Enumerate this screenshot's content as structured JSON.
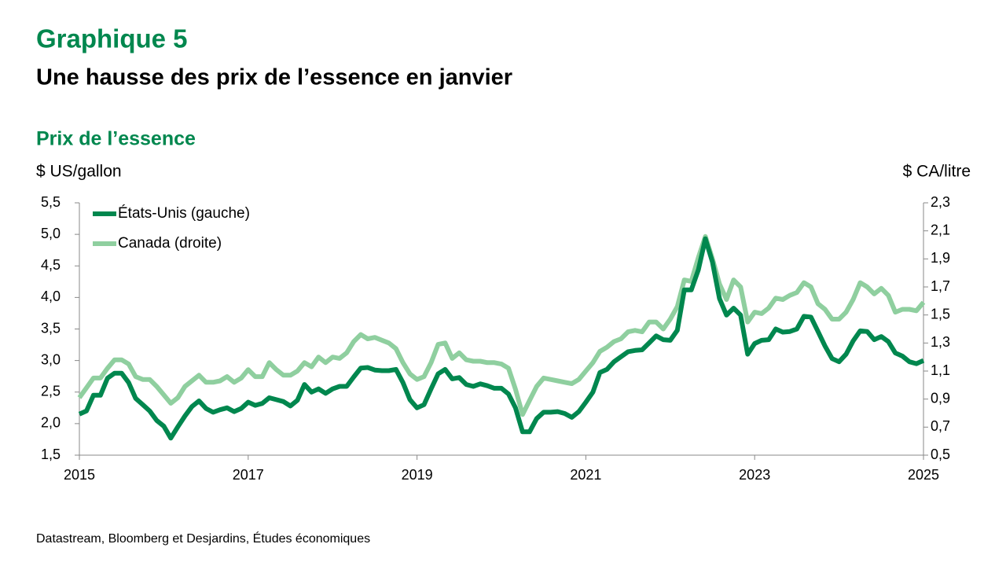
{
  "chart_data": {
    "type": "line",
    "title": "Graphique 5",
    "subtitle": "Une hausse des prix de l’essence en janvier",
    "chart_title": "Prix de l’essence",
    "y_label": "$ US/gallon",
    "y2_label": "$ CA/litre",
    "source": "Datastream, Bloomberg et Desjardins, Études économiques",
    "legend": "top-left",
    "categories": [
      "2015",
      null,
      null,
      null,
      null,
      null,
      null,
      null,
      null,
      null,
      null,
      null,
      null,
      null,
      null,
      null,
      null,
      null,
      null,
      null,
      null,
      null,
      null,
      null,
      "2017",
      null,
      null,
      null,
      null,
      null,
      null,
      null,
      null,
      null,
      null,
      null,
      null,
      null,
      null,
      null,
      null,
      null,
      null,
      null,
      null,
      null,
      null,
      null,
      "2019",
      null,
      null,
      null,
      null,
      null,
      null,
      null,
      null,
      null,
      null,
      null,
      null,
      null,
      null,
      null,
      null,
      null,
      null,
      null,
      null,
      null,
      null,
      null,
      "2021",
      null,
      null,
      null,
      null,
      null,
      null,
      null,
      null,
      null,
      null,
      null,
      null,
      null,
      null,
      null,
      null,
      null,
      null,
      null,
      null,
      null,
      null,
      null,
      "2023",
      null,
      null,
      null,
      null,
      null,
      null,
      null,
      null,
      null,
      null,
      null,
      null,
      null,
      null,
      null,
      null,
      null,
      null,
      null,
      null,
      null,
      null,
      null,
      "2025"
    ],
    "series": [
      {
        "name": "États-Unis (gauche)",
        "color": "#00874e",
        "values": [
          2.15,
          2.2,
          2.45,
          2.45,
          2.72,
          2.8,
          2.8,
          2.65,
          2.4,
          2.3,
          2.2,
          2.05,
          1.96,
          1.77,
          1.95,
          2.12,
          2.27,
          2.36,
          2.24,
          2.18,
          2.22,
          2.25,
          2.19,
          2.24,
          2.34,
          2.29,
          2.32,
          2.41,
          2.38,
          2.35,
          2.28,
          2.37,
          2.62,
          2.5,
          2.55,
          2.48,
          2.55,
          2.59,
          2.59,
          2.74,
          2.88,
          2.89,
          2.85,
          2.84,
          2.84,
          2.86,
          2.65,
          2.38,
          2.25,
          2.3,
          2.55,
          2.79,
          2.86,
          2.71,
          2.73,
          2.62,
          2.59,
          2.63,
          2.6,
          2.56,
          2.56,
          2.47,
          2.25,
          1.87,
          1.87,
          2.08,
          2.18,
          2.18,
          2.19,
          2.16,
          2.1,
          2.19,
          2.34,
          2.5,
          2.81,
          2.86,
          2.98,
          3.06,
          3.14,
          3.16,
          3.17,
          3.28,
          3.39,
          3.33,
          3.32,
          3.48,
          4.12,
          4.12,
          4.44,
          4.93,
          4.56,
          3.98,
          3.72,
          3.83,
          3.72,
          3.1,
          3.27,
          3.32,
          3.33,
          3.5,
          3.45,
          3.46,
          3.5,
          3.7,
          3.69,
          3.46,
          3.23,
          3.03,
          2.98,
          3.1,
          3.31,
          3.47,
          3.46,
          3.33,
          3.38,
          3.3,
          3.12,
          3.07,
          2.98,
          2.95,
          3.0
        ]
      },
      {
        "name": "Canada (droite)",
        "color": "#8fcf9f",
        "axis": "y2",
        "values": [
          0.91,
          0.98,
          1.05,
          1.05,
          1.12,
          1.18,
          1.18,
          1.15,
          1.06,
          1.04,
          1.04,
          0.99,
          0.93,
          0.87,
          0.91,
          0.99,
          1.03,
          1.07,
          1.02,
          1.02,
          1.03,
          1.06,
          1.02,
          1.05,
          1.11,
          1.06,
          1.06,
          1.16,
          1.11,
          1.07,
          1.07,
          1.1,
          1.16,
          1.13,
          1.2,
          1.16,
          1.2,
          1.19,
          1.23,
          1.31,
          1.36,
          1.33,
          1.34,
          1.32,
          1.3,
          1.26,
          1.16,
          1.08,
          1.04,
          1.06,
          1.16,
          1.29,
          1.3,
          1.19,
          1.23,
          1.18,
          1.17,
          1.17,
          1.16,
          1.16,
          1.15,
          1.12,
          0.97,
          0.79,
          0.89,
          0.99,
          1.05,
          1.04,
          1.03,
          1.02,
          1.01,
          1.04,
          1.1,
          1.16,
          1.24,
          1.27,
          1.31,
          1.33,
          1.38,
          1.39,
          1.38,
          1.45,
          1.45,
          1.4,
          1.47,
          1.56,
          1.75,
          1.74,
          1.91,
          2.06,
          1.9,
          1.72,
          1.61,
          1.75,
          1.7,
          1.45,
          1.52,
          1.51,
          1.55,
          1.62,
          1.61,
          1.64,
          1.66,
          1.73,
          1.7,
          1.58,
          1.54,
          1.47,
          1.47,
          1.52,
          1.61,
          1.73,
          1.7,
          1.65,
          1.69,
          1.64,
          1.52,
          1.54,
          1.54,
          1.53,
          1.59
        ]
      }
    ],
    "ylim": [
      1.5,
      5.5
    ],
    "yticks": [
      {
        "value": 1.5,
        "label": "1,5"
      },
      {
        "value": 2.0,
        "label": "2,0"
      },
      {
        "value": 2.5,
        "label": "2,5"
      },
      {
        "value": 3.0,
        "label": "3,0"
      },
      {
        "value": 3.5,
        "label": "3,5"
      },
      {
        "value": 4.0,
        "label": "4,0"
      },
      {
        "value": 4.5,
        "label": "4,5"
      },
      {
        "value": 5.0,
        "label": "5,0"
      },
      {
        "value": 5.5,
        "label": "5,5"
      }
    ],
    "y2lim": [
      0.5,
      2.3
    ],
    "y2ticks": [
      {
        "value": 0.5,
        "label": "0,5"
      },
      {
        "value": 0.7,
        "label": "0,7"
      },
      {
        "value": 0.9,
        "label": "0,9"
      },
      {
        "value": 1.1,
        "label": "1,1"
      },
      {
        "value": 1.3,
        "label": "1,3"
      },
      {
        "value": 1.5,
        "label": "1,5"
      },
      {
        "value": 1.7,
        "label": "1,7"
      },
      {
        "value": 1.9,
        "label": "1,9"
      },
      {
        "value": 2.1,
        "label": "2,1"
      },
      {
        "value": 2.3,
        "label": "2,3"
      }
    ]
  }
}
